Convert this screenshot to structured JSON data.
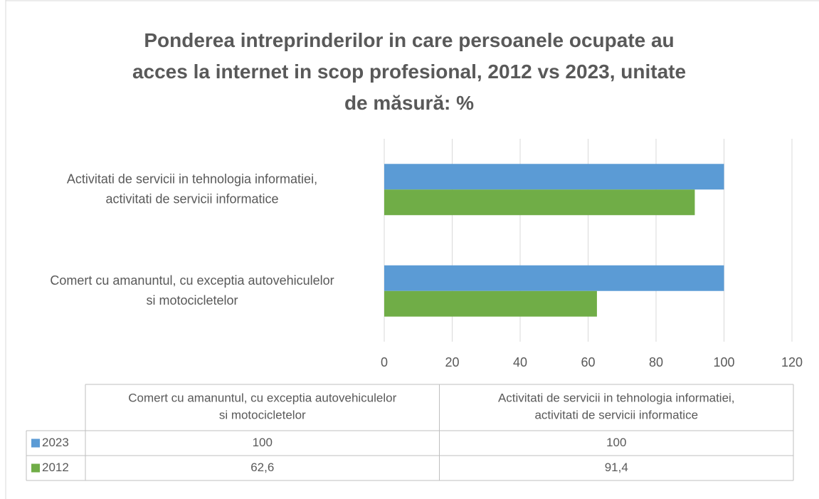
{
  "chart_data": {
    "type": "barh",
    "title": "Ponderea intreprinderilor in care persoanele ocupate au acces la internet in scop profesional, 2012 vs 2023, unitate de măsură: %",
    "categories": [
      "Comert cu amanuntul, cu exceptia autovehiculelor si motocicletelor",
      "Activitati de servicii in tehnologia informatiei, activitati de servicii informatice"
    ],
    "series": [
      {
        "name": "2023",
        "color": "#5b9bd5",
        "values": [
          100,
          100
        ],
        "value_labels": [
          "100",
          "100"
        ]
      },
      {
        "name": "2012",
        "color": "#70ad47",
        "values": [
          62.6,
          91.4
        ],
        "value_labels": [
          "62,6",
          "91,4"
        ]
      }
    ],
    "xlim": [
      0,
      120
    ],
    "xticks": [
      0,
      20,
      40,
      60,
      80,
      100,
      120
    ],
    "grid": true
  }
}
